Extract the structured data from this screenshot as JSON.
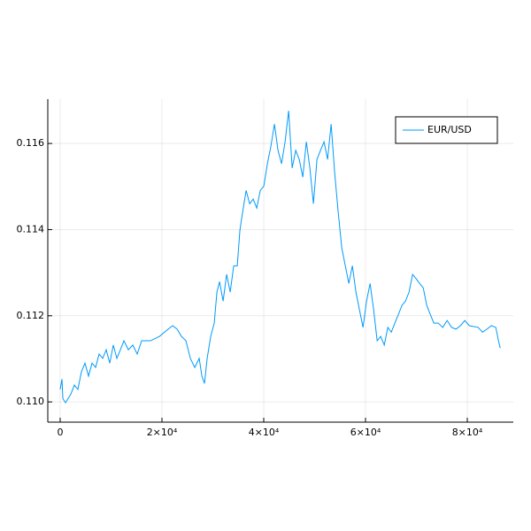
{
  "chart_data": {
    "type": "line",
    "x": [
      0,
      348,
      522,
      1044,
      2088,
      2784,
      3480,
      4176,
      4872,
      5568,
      6264,
      6960,
      7656,
      8352,
      9048,
      9744,
      10440,
      11136,
      11832,
      12528,
      13398,
      14268,
      15138,
      16008,
      17748,
      19488,
      21228,
      22098,
      22968,
      23838,
      24708,
      25578,
      26448,
      27318,
      27840,
      28362,
      28884,
      29580,
      30276,
      30798,
      31320,
      32016,
      32712,
      33408,
      34104,
      34800,
      35322,
      35844,
      36540,
      37236,
      37932,
      38628,
      39324,
      40020,
      40716,
      41412,
      42108,
      42804,
      43500,
      44196,
      44892,
      45588,
      46284,
      46980,
      47676,
      48372,
      49068,
      49764,
      50460,
      51156,
      51852,
      52548,
      53244,
      53940,
      54636,
      55332,
      56028,
      56724,
      57420,
      58116,
      58812,
      59508,
      60204,
      60900,
      61596,
      62292,
      62988,
      63684,
      64380,
      65076,
      65772,
      66468,
      67164,
      67860,
      68556,
      69252,
      69948,
      70644,
      71340,
      72036,
      72732,
      73428,
      74298,
      75168,
      76038,
      76908,
      77778,
      78648,
      79518,
      80388,
      82128,
      82998,
      83868,
      84738,
      85608,
      86130,
      86478
    ],
    "series": [
      {
        "name": "EUR/USD",
        "color": "#009af9",
        "values": [
          0.11029,
          0.11053,
          0.11008,
          0.10998,
          0.11018,
          0.11039,
          0.11029,
          0.1107,
          0.1109,
          0.1106,
          0.1109,
          0.1108,
          0.11111,
          0.11101,
          0.11121,
          0.1109,
          0.11132,
          0.11101,
          0.11121,
          0.11142,
          0.11121,
          0.11132,
          0.11111,
          0.11142,
          0.11142,
          0.11152,
          0.11169,
          0.11177,
          0.11169,
          0.11152,
          0.11142,
          0.11101,
          0.1108,
          0.11101,
          0.1106,
          0.11043,
          0.11101,
          0.11152,
          0.11183,
          0.11255,
          0.11279,
          0.11234,
          0.11296,
          0.11255,
          0.11316,
          0.11316,
          0.11399,
          0.1144,
          0.11491,
          0.1146,
          0.11471,
          0.1145,
          0.11491,
          0.11501,
          0.11553,
          0.11594,
          0.11645,
          0.11584,
          0.11553,
          0.11604,
          0.11676,
          0.11543,
          0.11584,
          0.11563,
          0.11522,
          0.11604,
          0.11543,
          0.1146,
          0.11563,
          0.11584,
          0.11604,
          0.11563,
          0.11645,
          0.11532,
          0.1144,
          0.11358,
          0.11316,
          0.11275,
          0.11316,
          0.11255,
          0.11214,
          0.11173,
          0.11234,
          0.11275,
          0.11214,
          0.11142,
          0.11152,
          0.11132,
          0.11173,
          0.11162,
          0.11183,
          0.11203,
          0.11224,
          0.11234,
          0.11255,
          0.11296,
          0.11286,
          0.11275,
          0.11265,
          0.11224,
          0.11203,
          0.11183,
          0.11183,
          0.11173,
          0.11189,
          0.11173,
          0.11169,
          0.11177,
          0.11189,
          0.11177,
          0.11173,
          0.11162,
          0.11169,
          0.11177,
          0.11173,
          0.11142,
          0.11125
        ]
      }
    ],
    "xlim": [
      -2435,
      89043
    ],
    "ylim": [
      0.10953,
      0.11703
    ],
    "xticks": [
      0,
      {
        "value": 20000,
        "label": "2×10⁴"
      },
      {
        "value": 40000,
        "label": "4×10⁴"
      },
      {
        "value": 60000,
        "label": "6×10⁴"
      },
      {
        "value": 80000,
        "label": "8×10⁴"
      }
    ],
    "yticks": [
      {
        "value": 0.11,
        "label": "0.110"
      },
      {
        "value": 0.112,
        "label": "0.112"
      },
      {
        "value": 0.114,
        "label": "0.114"
      },
      {
        "value": 0.116,
        "label": "0.116"
      }
    ],
    "grid": true,
    "legend": "top-right"
  }
}
